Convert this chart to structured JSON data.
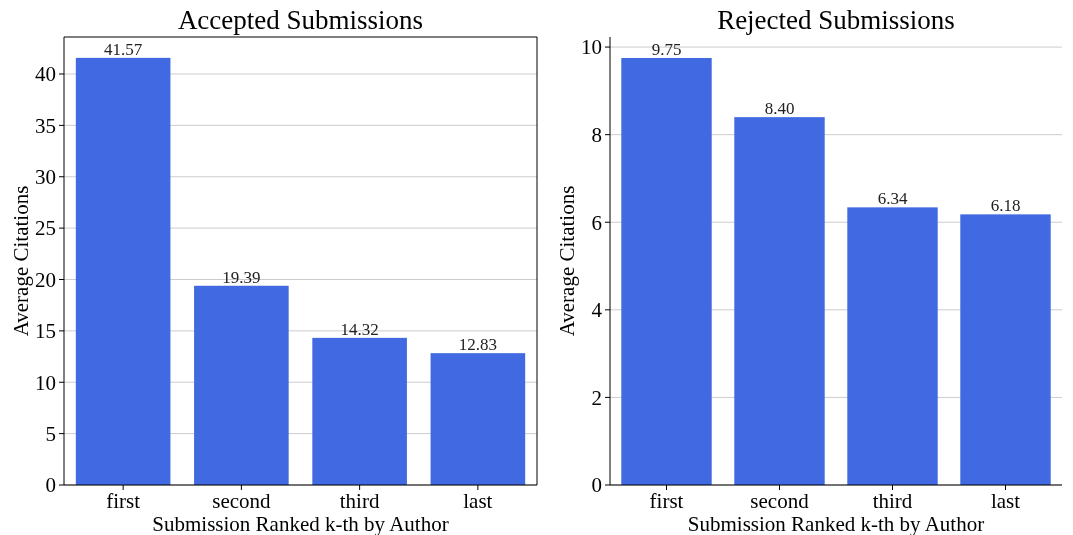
{
  "chart_data": [
    {
      "type": "bar",
      "title": "Accepted Submissions",
      "xlabel": "Submission Ranked k-th by Author",
      "ylabel": "Average Citations",
      "categories": [
        "first",
        "second",
        "third",
        "last"
      ],
      "values": [
        41.57,
        19.39,
        14.32,
        12.83
      ],
      "value_labels": [
        "41.57",
        "19.39",
        "14.32",
        "12.83"
      ],
      "color": "#4169e1",
      "ylim": [
        0,
        43.6
      ],
      "yticks": [
        0,
        5,
        10,
        15,
        20,
        25,
        30,
        35,
        40
      ],
      "grid": "y"
    },
    {
      "type": "bar",
      "title": "Rejected Submissions",
      "xlabel": "Submission Ranked k-th by Author",
      "ylabel": "Average Citations",
      "categories": [
        "first",
        "second",
        "third",
        "last"
      ],
      "values": [
        9.75,
        8.4,
        6.34,
        6.18
      ],
      "value_labels": [
        "9.75",
        "8.40",
        "6.34",
        "6.18"
      ],
      "color": "#4169e1",
      "ylim": [
        0,
        10.23
      ],
      "yticks": [
        0,
        2,
        4,
        6,
        8,
        10
      ],
      "grid": "y"
    }
  ]
}
